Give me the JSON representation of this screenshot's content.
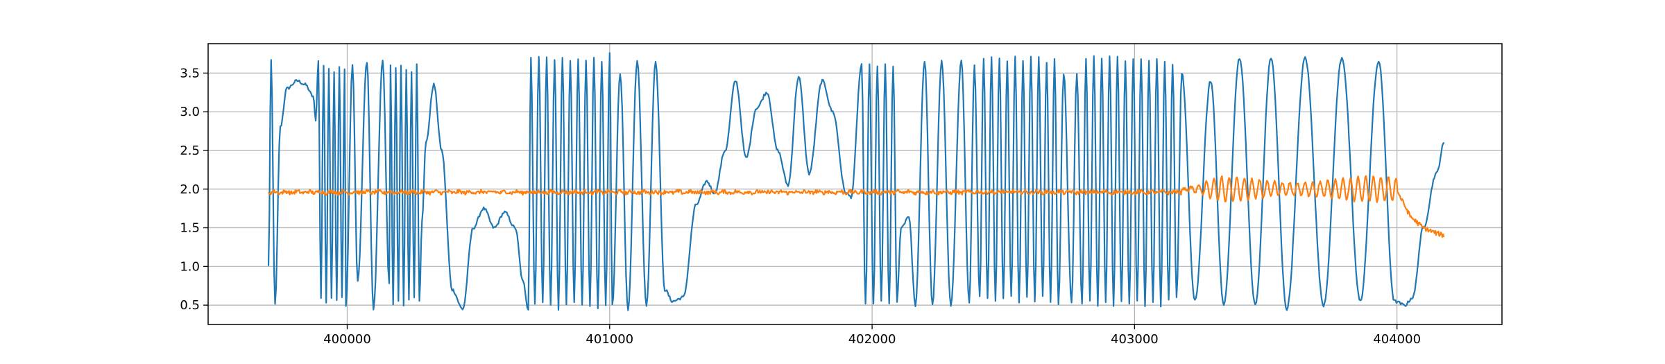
{
  "colors": {
    "series_blue": "#1f77b4",
    "series_orange": "#ff7f0e",
    "grid": "#b0b0b0",
    "axes": "#000000"
  },
  "chart_data": {
    "type": "line",
    "title": "",
    "xlabel": "",
    "ylabel": "",
    "grid": true,
    "xlim": [
      399470,
      404400
    ],
    "ylim": [
      0.25,
      3.88
    ],
    "x_ticks": [
      400000,
      401000,
      402000,
      403000,
      404000
    ],
    "x_tick_labels": [
      "400000",
      "401000",
      "402000",
      "403000",
      "404000"
    ],
    "y_ticks": [
      0.5,
      1.0,
      1.5,
      2.0,
      2.5,
      3.0,
      3.5
    ],
    "y_tick_labels": [
      "0.5",
      "1.0",
      "1.5",
      "2.0",
      "2.5",
      "3.0",
      "3.5"
    ],
    "x_start": 399700,
    "x_end": 404180,
    "series": [
      {
        "color": "#1f77b4",
        "description": "Highly oscillating signal between ~0.45 and ~3.7; approximate envelope points listed",
        "points": [
          [
            399700,
            1.0
          ],
          [
            399710,
            3.65
          ],
          [
            399725,
            0.5
          ],
          [
            399745,
            2.8
          ],
          [
            399770,
            3.3
          ],
          [
            399810,
            3.4
          ],
          [
            399840,
            3.35
          ],
          [
            399870,
            3.2
          ],
          [
            399880,
            2.9
          ],
          [
            399890,
            3.65
          ],
          [
            399900,
            0.6
          ],
          [
            399910,
            3.6
          ],
          [
            399920,
            0.55
          ],
          [
            399930,
            3.55
          ],
          [
            399940,
            0.6
          ],
          [
            399950,
            3.5
          ],
          [
            399960,
            0.55
          ],
          [
            399970,
            3.6
          ],
          [
            399980,
            0.6
          ],
          [
            399990,
            3.55
          ],
          [
            399995,
            0.5
          ],
          [
            400020,
            3.6
          ],
          [
            400040,
            0.8
          ],
          [
            400075,
            3.65
          ],
          [
            400100,
            0.45
          ],
          [
            400135,
            3.65
          ],
          [
            400160,
            0.8
          ],
          [
            400165,
            3.6
          ],
          [
            400175,
            0.5
          ],
          [
            400185,
            3.55
          ],
          [
            400195,
            0.55
          ],
          [
            400205,
            3.6
          ],
          [
            400215,
            0.5
          ],
          [
            400225,
            3.55
          ],
          [
            400235,
            0.55
          ],
          [
            400245,
            3.5
          ],
          [
            400255,
            0.6
          ],
          [
            400265,
            3.6
          ],
          [
            400275,
            0.55
          ],
          [
            400285,
            1.6
          ],
          [
            400300,
            2.6
          ],
          [
            400330,
            3.35
          ],
          [
            400360,
            2.5
          ],
          [
            400400,
            0.7
          ],
          [
            400440,
            0.45
          ],
          [
            400480,
            1.5
          ],
          [
            400520,
            1.75
          ],
          [
            400560,
            1.5
          ],
          [
            400600,
            1.7
          ],
          [
            400640,
            1.5
          ],
          [
            400670,
            0.8
          ],
          [
            400690,
            0.45
          ],
          [
            400700,
            3.7
          ],
          [
            400715,
            0.5
          ],
          [
            400730,
            3.7
          ],
          [
            400745,
            0.55
          ],
          [
            400760,
            3.7
          ],
          [
            400775,
            0.5
          ],
          [
            400790,
            3.65
          ],
          [
            400805,
            0.45
          ],
          [
            400820,
            3.7
          ],
          [
            400835,
            0.5
          ],
          [
            400850,
            3.65
          ],
          [
            400865,
            0.55
          ],
          [
            400880,
            3.7
          ],
          [
            400895,
            0.5
          ],
          [
            400910,
            3.65
          ],
          [
            400925,
            0.5
          ],
          [
            400940,
            3.7
          ],
          [
            400955,
            0.45
          ],
          [
            400970,
            3.65
          ],
          [
            400985,
            0.5
          ],
          [
            401000,
            3.75
          ],
          [
            401010,
            0.5
          ],
          [
            401040,
            3.5
          ],
          [
            401070,
            0.45
          ],
          [
            401105,
            3.65
          ],
          [
            401140,
            0.5
          ],
          [
            401175,
            3.65
          ],
          [
            401210,
            0.7
          ],
          [
            401240,
            0.55
          ],
          [
            401280,
            0.6
          ],
          [
            401330,
            1.8
          ],
          [
            401370,
            2.1
          ],
          [
            401400,
            1.95
          ],
          [
            401440,
            2.5
          ],
          [
            401480,
            3.4
          ],
          [
            401520,
            2.4
          ],
          [
            401560,
            3.05
          ],
          [
            401600,
            3.25
          ],
          [
            401640,
            2.5
          ],
          [
            401680,
            2.05
          ],
          [
            401720,
            3.45
          ],
          [
            401760,
            2.2
          ],
          [
            401810,
            3.4
          ],
          [
            401850,
            3.0
          ],
          [
            401900,
            1.95
          ],
          [
            401920,
            1.9
          ],
          [
            401960,
            3.6
          ],
          [
            401975,
            0.5
          ],
          [
            401990,
            3.6
          ],
          [
            402005,
            0.5
          ],
          [
            402020,
            3.6
          ],
          [
            402035,
            0.55
          ],
          [
            402050,
            3.6
          ],
          [
            402065,
            0.5
          ],
          [
            402080,
            3.6
          ],
          [
            402095,
            0.55
          ],
          [
            402110,
            1.5
          ],
          [
            402140,
            1.65
          ],
          [
            402165,
            0.5
          ],
          [
            402200,
            3.65
          ],
          [
            402230,
            0.5
          ],
          [
            402265,
            3.65
          ],
          [
            402300,
            0.5
          ],
          [
            402340,
            3.65
          ],
          [
            402370,
            0.55
          ],
          [
            402390,
            3.6
          ],
          [
            402410,
            0.6
          ],
          [
            402425,
            3.7
          ],
          [
            402440,
            0.6
          ],
          [
            402455,
            3.7
          ],
          [
            402470,
            0.55
          ],
          [
            402485,
            3.7
          ],
          [
            402500,
            0.6
          ],
          [
            402515,
            3.65
          ],
          [
            402530,
            0.6
          ],
          [
            402545,
            3.7
          ],
          [
            402560,
            0.55
          ],
          [
            402575,
            3.65
          ],
          [
            402590,
            0.6
          ],
          [
            402605,
            3.7
          ],
          [
            402620,
            0.55
          ],
          [
            402635,
            3.7
          ],
          [
            402650,
            0.6
          ],
          [
            402665,
            3.65
          ],
          [
            402680,
            0.55
          ],
          [
            402695,
            3.7
          ],
          [
            402710,
            0.5
          ],
          [
            402730,
            3.5
          ],
          [
            402760,
            0.55
          ],
          [
            402780,
            3.5
          ],
          [
            402800,
            0.5
          ],
          [
            402815,
            3.7
          ],
          [
            402830,
            0.55
          ],
          [
            402845,
            3.7
          ],
          [
            402860,
            0.5
          ],
          [
            402875,
            3.7
          ],
          [
            402890,
            0.55
          ],
          [
            402905,
            3.7
          ],
          [
            402920,
            0.5
          ],
          [
            402935,
            3.7
          ],
          [
            402950,
            0.55
          ],
          [
            402965,
            3.65
          ],
          [
            402980,
            0.5
          ],
          [
            402995,
            3.7
          ],
          [
            403010,
            0.55
          ],
          [
            403025,
            3.7
          ],
          [
            403040,
            0.5
          ],
          [
            403055,
            3.65
          ],
          [
            403070,
            0.55
          ],
          [
            403085,
            3.7
          ],
          [
            403100,
            0.5
          ],
          [
            403115,
            3.65
          ],
          [
            403130,
            0.55
          ],
          [
            403145,
            3.6
          ],
          [
            403160,
            0.6
          ],
          [
            403180,
            3.5
          ],
          [
            403230,
            0.55
          ],
          [
            403290,
            3.4
          ],
          [
            403340,
            0.5
          ],
          [
            403400,
            3.7
          ],
          [
            403460,
            0.5
          ],
          [
            403520,
            3.7
          ],
          [
            403580,
            0.45
          ],
          [
            403650,
            3.7
          ],
          [
            403720,
            0.5
          ],
          [
            403790,
            3.7
          ],
          [
            403860,
            0.55
          ],
          [
            403930,
            3.65
          ],
          [
            403990,
            0.55
          ],
          [
            404030,
            0.5
          ],
          [
            404060,
            0.6
          ],
          [
            404100,
            1.5
          ],
          [
            404150,
            2.2
          ],
          [
            404180,
            2.6
          ]
        ]
      },
      {
        "color": "#ff7f0e",
        "description": "Noisy baseline near 1.96 with larger oscillation 403180-404000, then decay to ~1.4",
        "baseline": 1.96,
        "noise": 0.025,
        "oscillation_start": 403180,
        "oscillation_end": 404000,
        "oscillation_amplitude": 0.16,
        "tail": [
          [
            404000,
            1.98
          ],
          [
            404050,
            1.65
          ],
          [
            404100,
            1.5
          ],
          [
            404150,
            1.43
          ],
          [
            404180,
            1.4
          ]
        ]
      }
    ]
  }
}
